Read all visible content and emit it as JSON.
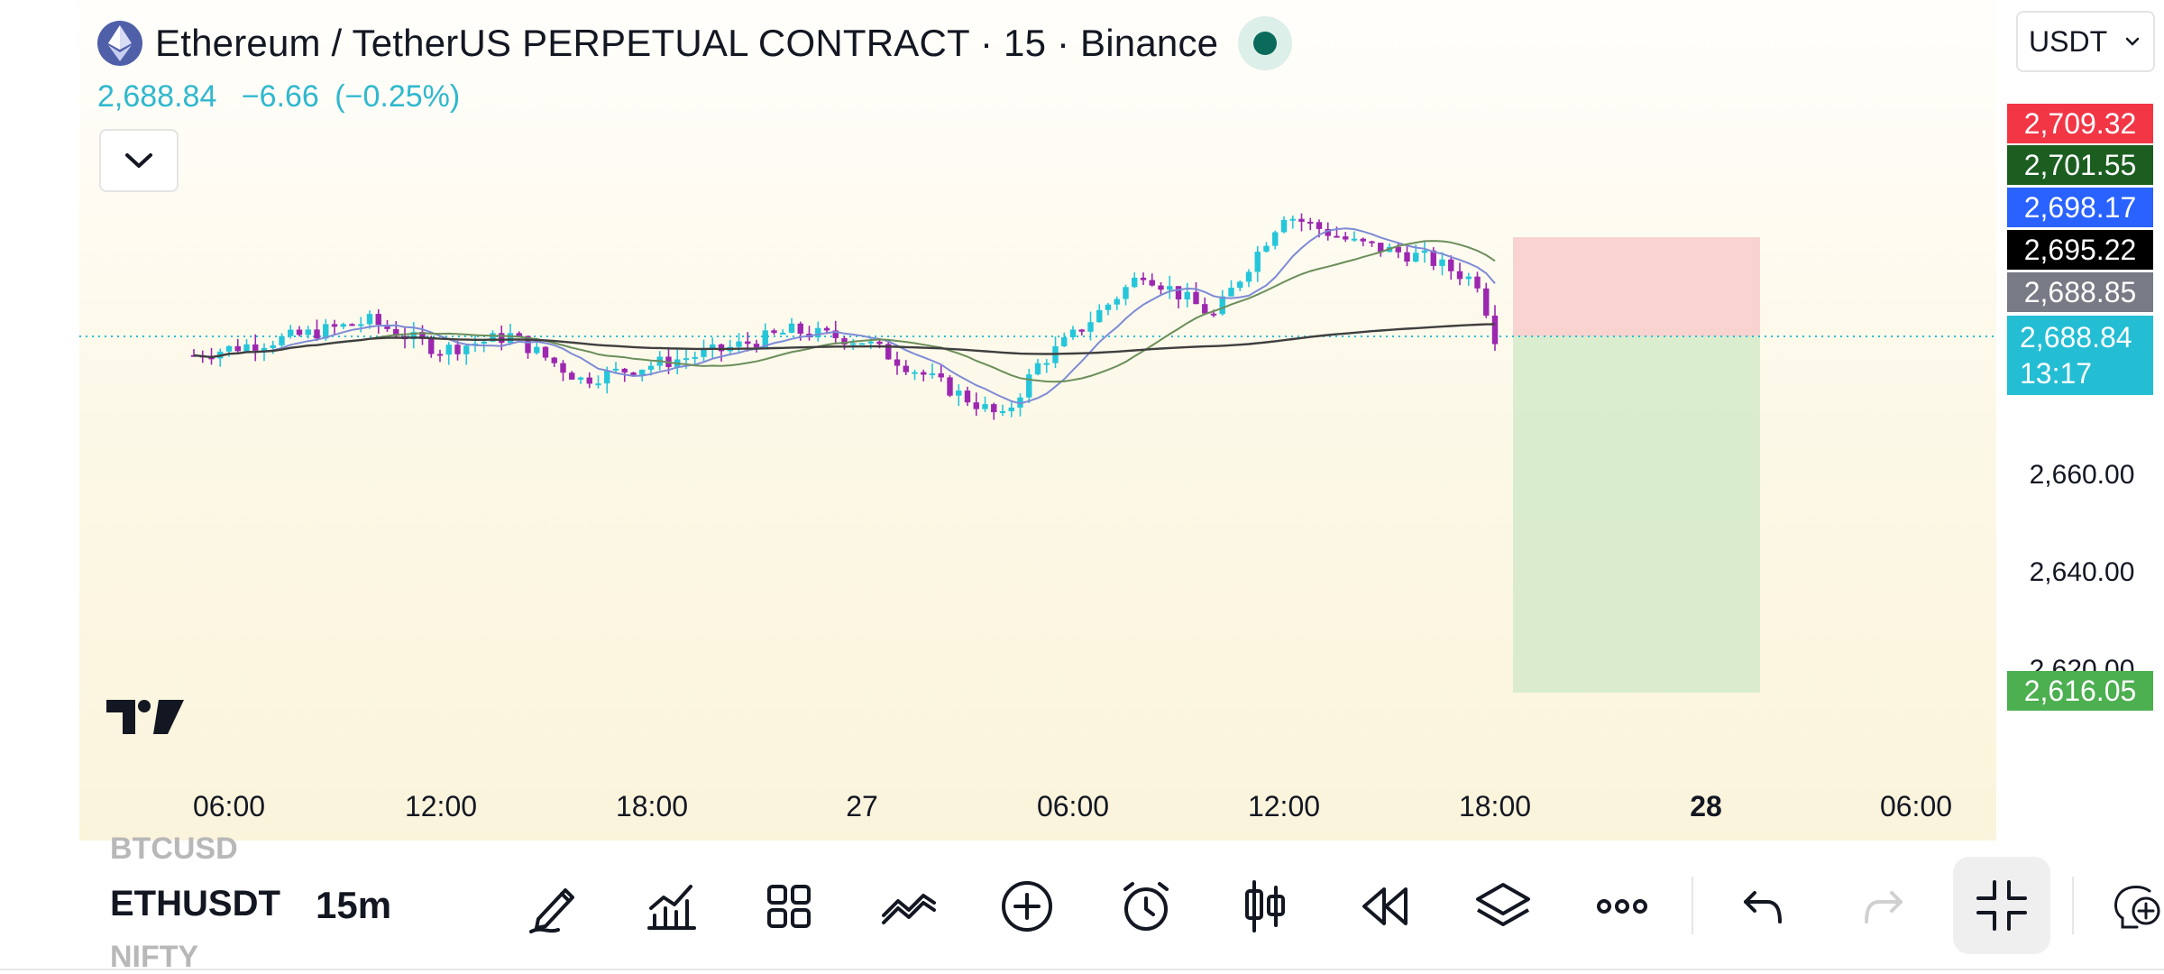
{
  "header": {
    "symbol_title": "Ethereum / TetherUS PERPETUAL CONTRACT · 15 · Binance",
    "last_price": "2,688.84",
    "change": "−6.66",
    "change_pct": "(−0.25%)"
  },
  "currency": {
    "label": "USDT"
  },
  "price_scale": {
    "tags": [
      {
        "value": "2,709.32",
        "color": "#f23645"
      },
      {
        "value": "2,701.55",
        "color": "#1b5e20"
      },
      {
        "value": "2,698.17",
        "color": "#2962ff"
      },
      {
        "value": "2,695.22",
        "color": "#000000"
      },
      {
        "value": "2,688.85",
        "color": "#787b86"
      }
    ],
    "last": {
      "value": "2,688.84",
      "countdown": "13:17"
    },
    "ticks": [
      "2,660.00",
      "2,640.00",
      "2,620.00"
    ],
    "stop_tag": {
      "value": "2,616.05",
      "color": "#4caf50"
    }
  },
  "time_axis": [
    "06:00",
    "12:00",
    "18:00",
    "27",
    "06:00",
    "12:00",
    "18:00",
    "28",
    "06:00"
  ],
  "toolbar": {
    "symbol_prev": "BTCUSD",
    "symbol_current": "ETHUSDT",
    "symbol_next": "NIFTY",
    "interval": "15m",
    "tools": [
      {
        "name": "draw-pencil-icon"
      },
      {
        "name": "indicators-icon"
      },
      {
        "name": "layouts-grid-icon"
      },
      {
        "name": "compare-icon"
      },
      {
        "name": "add-icon"
      },
      {
        "name": "alert-clock-icon"
      },
      {
        "name": "candle-style-icon"
      },
      {
        "name": "replay-icon"
      },
      {
        "name": "layers-icon"
      },
      {
        "name": "more-icon"
      },
      {
        "name": "undo-icon"
      },
      {
        "name": "redo-icon"
      },
      {
        "name": "exit-fullscreen-icon"
      },
      {
        "name": "zoom-in-icon"
      }
    ]
  },
  "chart_data": {
    "type": "candlestick",
    "symbol": "ETHUSDT",
    "interval": "15",
    "x_ticks": [
      "06:00",
      "12:00",
      "18:00",
      "27",
      "06:00",
      "12:00",
      "18:00",
      "28",
      "06:00"
    ],
    "y_ticks": [
      2620,
      2640,
      2660
    ],
    "current_price": 2688.84,
    "indicator_values": [
      2709.32,
      2701.55,
      2698.17,
      2695.22,
      2688.85
    ],
    "position": {
      "side": "short",
      "entry": 2688.84,
      "stop": 2709.32,
      "target": 2616.05
    },
    "anchors": [
      {
        "t": "05:00",
        "p": 2685
      },
      {
        "t": "08:00",
        "p": 2689
      },
      {
        "t": "10:00",
        "p": 2692
      },
      {
        "t": "12:00",
        "p": 2686
      },
      {
        "t": "14:00",
        "p": 2689
      },
      {
        "t": "16:00",
        "p": 2680
      },
      {
        "t": "18:00",
        "p": 2683
      },
      {
        "t": "20:00",
        "p": 2686
      },
      {
        "t": "22:00",
        "p": 2690
      },
      {
        "t": "27 00:00",
        "p": 2688
      },
      {
        "t": "27 03:00",
        "p": 2676
      },
      {
        "t": "27 04:00",
        "p": 2672
      },
      {
        "t": "27 05:00",
        "p": 2683
      },
      {
        "t": "27 06:00",
        "p": 2689
      },
      {
        "t": "27 08:00",
        "p": 2702
      },
      {
        "t": "27 10:00",
        "p": 2693
      },
      {
        "t": "27 12:00",
        "p": 2714
      },
      {
        "t": "27 14:00",
        "p": 2708
      },
      {
        "t": "27 16:00",
        "p": 2705
      },
      {
        "t": "27 17:30",
        "p": 2700
      },
      {
        "t": "27 18:00",
        "p": 2688.84
      }
    ]
  }
}
